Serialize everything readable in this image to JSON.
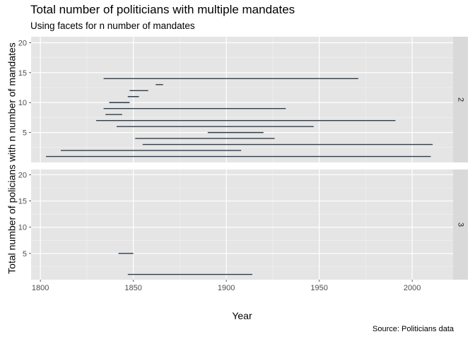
{
  "chart_data": {
    "type": "line",
    "subtype": "segment",
    "title": "Total number of politicians with multiple mandates",
    "subtitle": "Using facets for n number of mandates",
    "caption": "Source: Politicians data",
    "xlabel": "Year",
    "ylabel": "Total number of policians with n number of mandates",
    "xlim": [
      1795,
      2022
    ],
    "ylim": [
      0,
      21
    ],
    "x_ticks": [
      1800,
      1850,
      1900,
      1950,
      2000
    ],
    "y_ticks": [
      5,
      10,
      15,
      20
    ],
    "grid": true,
    "segment_color": "#2c3e50",
    "panel_background": "#e5e5e5",
    "strip_background": "#d9d9d9",
    "facets": [
      {
        "label": "2",
        "segments": [
          {
            "y": 1,
            "x_start": 1803,
            "x_end": 2010
          },
          {
            "y": 2,
            "x_start": 1811,
            "x_end": 1908
          },
          {
            "y": 3,
            "x_start": 1855,
            "x_end": 2011
          },
          {
            "y": 4,
            "x_start": 1851,
            "x_end": 1926
          },
          {
            "y": 5,
            "x_start": 1890,
            "x_end": 1920
          },
          {
            "y": 6,
            "x_start": 1841,
            "x_end": 1947
          },
          {
            "y": 7,
            "x_start": 1830,
            "x_end": 1991
          },
          {
            "y": 8,
            "x_start": 1835,
            "x_end": 1844
          },
          {
            "y": 9,
            "x_start": 1834,
            "x_end": 1932
          },
          {
            "y": 10,
            "x_start": 1837,
            "x_end": 1848
          },
          {
            "y": 11,
            "x_start": 1847,
            "x_end": 1853
          },
          {
            "y": 12,
            "x_start": 1848,
            "x_end": 1858
          },
          {
            "y": 13,
            "x_start": 1862,
            "x_end": 1866
          },
          {
            "y": 14,
            "x_start": 1834,
            "x_end": 1971
          }
        ]
      },
      {
        "label": "3",
        "segments": [
          {
            "y": 1,
            "x_start": 1847,
            "x_end": 1914
          },
          {
            "y": 5,
            "x_start": 1842,
            "x_end": 1850
          }
        ]
      }
    ]
  }
}
